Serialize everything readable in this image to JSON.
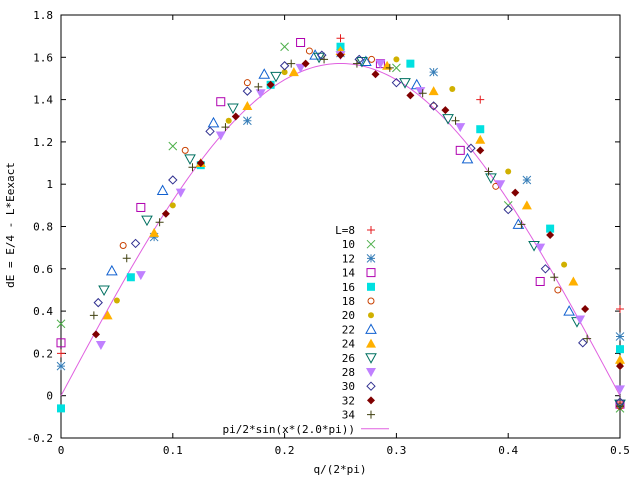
{
  "chart_data": {
    "type": "scatter",
    "xlabel": "q/(2*pi)",
    "ylabel": "dE = E/4 - L*Eexact",
    "xlim": [
      0,
      0.5
    ],
    "ylim": [
      -0.2,
      1.8
    ],
    "xticks": [
      "0",
      "0.1",
      "0.2",
      "0.3",
      "0.4",
      "0.5"
    ],
    "yticks": [
      "-0.2",
      "0",
      "0.2",
      "0.4",
      "0.6",
      "0.8",
      "1",
      "1.2",
      "1.4",
      "1.6",
      "1.8"
    ],
    "legend_position": "center-right",
    "series": [
      {
        "name": "L=8",
        "marker": "plus",
        "color": "#e41a1c",
        "points": [
          [
            0,
            0.2
          ],
          [
            0.25,
            1.69
          ],
          [
            0.375,
            1.4
          ],
          [
            0.5,
            0.41
          ],
          [
            0.5,
            -0.03
          ]
        ]
      },
      {
        "name": "10",
        "marker": "cross",
        "color": "#4daf4a",
        "points": [
          [
            0,
            0.34
          ],
          [
            0.1,
            1.18
          ],
          [
            0.2,
            1.65
          ],
          [
            0.3,
            1.55
          ],
          [
            0.4,
            0.9
          ],
          [
            0.5,
            -0.06
          ]
        ]
      },
      {
        "name": "12",
        "marker": "asterisk",
        "color": "#377eb8",
        "points": [
          [
            0,
            0.14
          ],
          [
            0.0833,
            0.75
          ],
          [
            0.1667,
            1.3
          ],
          [
            0.25,
            1.62
          ],
          [
            0.3333,
            1.53
          ],
          [
            0.4167,
            1.02
          ],
          [
            0.5,
            0.28
          ]
        ]
      },
      {
        "name": "14",
        "marker": "square-open",
        "color": "#b000b0",
        "points": [
          [
            0,
            0.25
          ],
          [
            0.0714,
            0.89
          ],
          [
            0.1429,
            1.39
          ],
          [
            0.2143,
            1.67
          ],
          [
            0.2857,
            1.57
          ],
          [
            0.3571,
            1.16
          ],
          [
            0.4286,
            0.54
          ],
          [
            0.5,
            -0.04
          ]
        ]
      },
      {
        "name": "16",
        "marker": "square-filled",
        "color": "#00e0e0",
        "points": [
          [
            0,
            -0.06
          ],
          [
            0.0625,
            0.56
          ],
          [
            0.125,
            1.09
          ],
          [
            0.1875,
            1.47
          ],
          [
            0.25,
            1.65
          ],
          [
            0.3125,
            1.57
          ],
          [
            0.375,
            1.26
          ],
          [
            0.4375,
            0.79
          ],
          [
            0.5,
            0.22
          ]
        ]
      },
      {
        "name": "18",
        "marker": "circle-open",
        "color": "#c84000",
        "points": [
          [
            0.0556,
            0.71
          ],
          [
            0.1111,
            1.16
          ],
          [
            0.1667,
            1.48
          ],
          [
            0.2222,
            1.63
          ],
          [
            0.2778,
            1.59
          ],
          [
            0.3333,
            1.37
          ],
          [
            0.3889,
            0.99
          ],
          [
            0.4444,
            0.5
          ],
          [
            0.5,
            -0.05
          ]
        ]
      },
      {
        "name": "20",
        "marker": "circle-filled",
        "color": "#d0b000",
        "points": [
          [
            0.05,
            0.45
          ],
          [
            0.1,
            0.9
          ],
          [
            0.15,
            1.3
          ],
          [
            0.2,
            1.53
          ],
          [
            0.25,
            1.63
          ],
          [
            0.3,
            1.59
          ],
          [
            0.35,
            1.45
          ],
          [
            0.4,
            1.06
          ],
          [
            0.45,
            0.62
          ],
          [
            0.5,
            0.15
          ]
        ]
      },
      {
        "name": "22",
        "marker": "triangle-up-open",
        "color": "#1060d0",
        "points": [
          [
            0.0455,
            0.59
          ],
          [
            0.0909,
            0.97
          ],
          [
            0.1364,
            1.29
          ],
          [
            0.1818,
            1.52
          ],
          [
            0.2273,
            1.61
          ],
          [
            0.2727,
            1.58
          ],
          [
            0.3182,
            1.47
          ],
          [
            0.3636,
            1.12
          ],
          [
            0.4091,
            0.81
          ],
          [
            0.4545,
            0.4
          ]
        ]
      },
      {
        "name": "24",
        "marker": "triangle-up-filled",
        "color": "#ffb000",
        "points": [
          [
            0.0417,
            0.38
          ],
          [
            0.0833,
            0.77
          ],
          [
            0.125,
            1.1
          ],
          [
            0.1667,
            1.37
          ],
          [
            0.2083,
            1.53
          ],
          [
            0.25,
            1.63
          ],
          [
            0.2917,
            1.56
          ],
          [
            0.3333,
            1.44
          ],
          [
            0.375,
            1.21
          ],
          [
            0.4167,
            0.9
          ],
          [
            0.4583,
            0.54
          ],
          [
            0.5,
            0.17
          ]
        ]
      },
      {
        "name": "26",
        "marker": "triangle-down-open",
        "color": "#007060",
        "points": [
          [
            0.0385,
            0.5
          ],
          [
            0.0769,
            0.83
          ],
          [
            0.1154,
            1.12
          ],
          [
            0.1538,
            1.36
          ],
          [
            0.1923,
            1.51
          ],
          [
            0.2308,
            1.6
          ],
          [
            0.2692,
            1.58
          ],
          [
            0.3077,
            1.48
          ],
          [
            0.3462,
            1.31
          ],
          [
            0.3846,
            1.03
          ],
          [
            0.4231,
            0.71
          ],
          [
            0.4615,
            0.35
          ],
          [
            0.5,
            -0.04
          ]
        ]
      },
      {
        "name": "28",
        "marker": "triangle-down-filled",
        "color": "#c080ff",
        "points": [
          [
            0.0357,
            0.24
          ],
          [
            0.0714,
            0.57
          ],
          [
            0.1071,
            0.96
          ],
          [
            0.1429,
            1.23
          ],
          [
            0.1786,
            1.43
          ],
          [
            0.2143,
            1.55
          ],
          [
            0.25,
            1.61
          ],
          [
            0.2857,
            1.57
          ],
          [
            0.3214,
            1.44
          ],
          [
            0.3571,
            1.27
          ],
          [
            0.3929,
            1.0
          ],
          [
            0.4286,
            0.7
          ],
          [
            0.4643,
            0.36
          ],
          [
            0.5,
            0.03
          ]
        ]
      },
      {
        "name": "30",
        "marker": "diamond-open",
        "color": "#303090",
        "points": [
          [
            0.0333,
            0.44
          ],
          [
            0.0667,
            0.72
          ],
          [
            0.1,
            1.02
          ],
          [
            0.1333,
            1.25
          ],
          [
            0.1667,
            1.44
          ],
          [
            0.2,
            1.56
          ],
          [
            0.2333,
            1.61
          ],
          [
            0.2667,
            1.59
          ],
          [
            0.3,
            1.48
          ],
          [
            0.3333,
            1.37
          ],
          [
            0.3667,
            1.17
          ],
          [
            0.4,
            0.88
          ],
          [
            0.4333,
            0.6
          ],
          [
            0.4667,
            0.25
          ],
          [
            0.5,
            -0.03
          ]
        ]
      },
      {
        "name": "32",
        "marker": "diamond-filled",
        "color": "#800000",
        "points": [
          [
            0.0313,
            0.29
          ],
          [
            0.0938,
            0.86
          ],
          [
            0.125,
            1.1
          ],
          [
            0.1563,
            1.32
          ],
          [
            0.1875,
            1.47
          ],
          [
            0.2188,
            1.57
          ],
          [
            0.25,
            1.61
          ],
          [
            0.2813,
            1.52
          ],
          [
            0.3125,
            1.42
          ],
          [
            0.3438,
            1.35
          ],
          [
            0.375,
            1.16
          ],
          [
            0.4063,
            0.96
          ],
          [
            0.4375,
            0.76
          ],
          [
            0.4688,
            0.41
          ],
          [
            0.5,
            0.14
          ]
        ]
      },
      {
        "name": "34",
        "marker": "plus",
        "color": "#404010",
        "points": [
          [
            0.0294,
            0.38
          ],
          [
            0.0588,
            0.65
          ],
          [
            0.0882,
            0.82
          ],
          [
            0.1176,
            1.08
          ],
          [
            0.1471,
            1.27
          ],
          [
            0.1765,
            1.46
          ],
          [
            0.2059,
            1.57
          ],
          [
            0.2353,
            1.59
          ],
          [
            0.2647,
            1.57
          ],
          [
            0.2941,
            1.55
          ],
          [
            0.3235,
            1.43
          ],
          [
            0.3529,
            1.3
          ],
          [
            0.3824,
            1.06
          ],
          [
            0.4118,
            0.81
          ],
          [
            0.4412,
            0.56
          ],
          [
            0.4706,
            0.27
          ],
          [
            0.5,
            -0.05
          ]
        ]
      }
    ],
    "curve": {
      "name": "pi/2*sin(x*(2.0*pi))",
      "color": "#e060e0",
      "amplitude": 1.5708
    }
  }
}
